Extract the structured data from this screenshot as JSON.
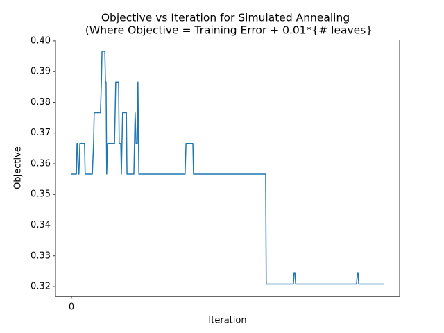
{
  "chart_data": {
    "type": "line",
    "title": [
      "Objective vs Iteration for Simulated Annealing",
      "(Where Objective = Training Error + 0.01*{# leaves}"
    ],
    "xlabel": "Iteration",
    "ylabel": "Objective",
    "x": [
      0,
      16,
      18,
      20,
      22,
      24,
      27,
      42,
      44,
      67,
      71,
      73,
      93,
      96,
      98,
      107,
      109,
      111,
      113,
      116,
      138,
      140,
      142,
      151,
      153,
      158,
      160,
      164,
      176,
      178,
      200,
      202,
      204,
      207,
      211,
      213,
      216,
      364,
      367,
      389,
      391,
      622,
      624,
      711,
      713,
      716,
      718,
      913,
      916,
      918,
      920,
      1000
    ],
    "values": [
      0.3566,
      0.3566,
      0.3666,
      0.3666,
      0.3566,
      0.3566,
      0.3666,
      0.3666,
      0.3566,
      0.3566,
      0.3666,
      0.3766,
      0.3766,
      0.3866,
      0.3966,
      0.3966,
      0.3866,
      0.3866,
      0.3566,
      0.3666,
      0.3666,
      0.3766,
      0.3866,
      0.3866,
      0.3666,
      0.3666,
      0.3566,
      0.3766,
      0.3766,
      0.3566,
      0.3566,
      0.3666,
      0.3766,
      0.3666,
      0.3666,
      0.3866,
      0.3566,
      0.3566,
      0.3666,
      0.3666,
      0.3566,
      0.3566,
      0.3208,
      0.3208,
      0.3245,
      0.3245,
      0.3208,
      0.3208,
      0.3245,
      0.3245,
      0.3208,
      0.3208
    ],
    "color": "#1f77b4",
    "xlim": [
      -51,
      1051
    ],
    "xticks": [
      0
    ],
    "ylim": [
      0.3168,
      0.4003
    ],
    "yticks": [
      0.32,
      0.33,
      0.34,
      0.35,
      0.36,
      0.37,
      0.38,
      0.39,
      {
        "value": 0.4,
        "label": "0.40"
      }
    ]
  }
}
